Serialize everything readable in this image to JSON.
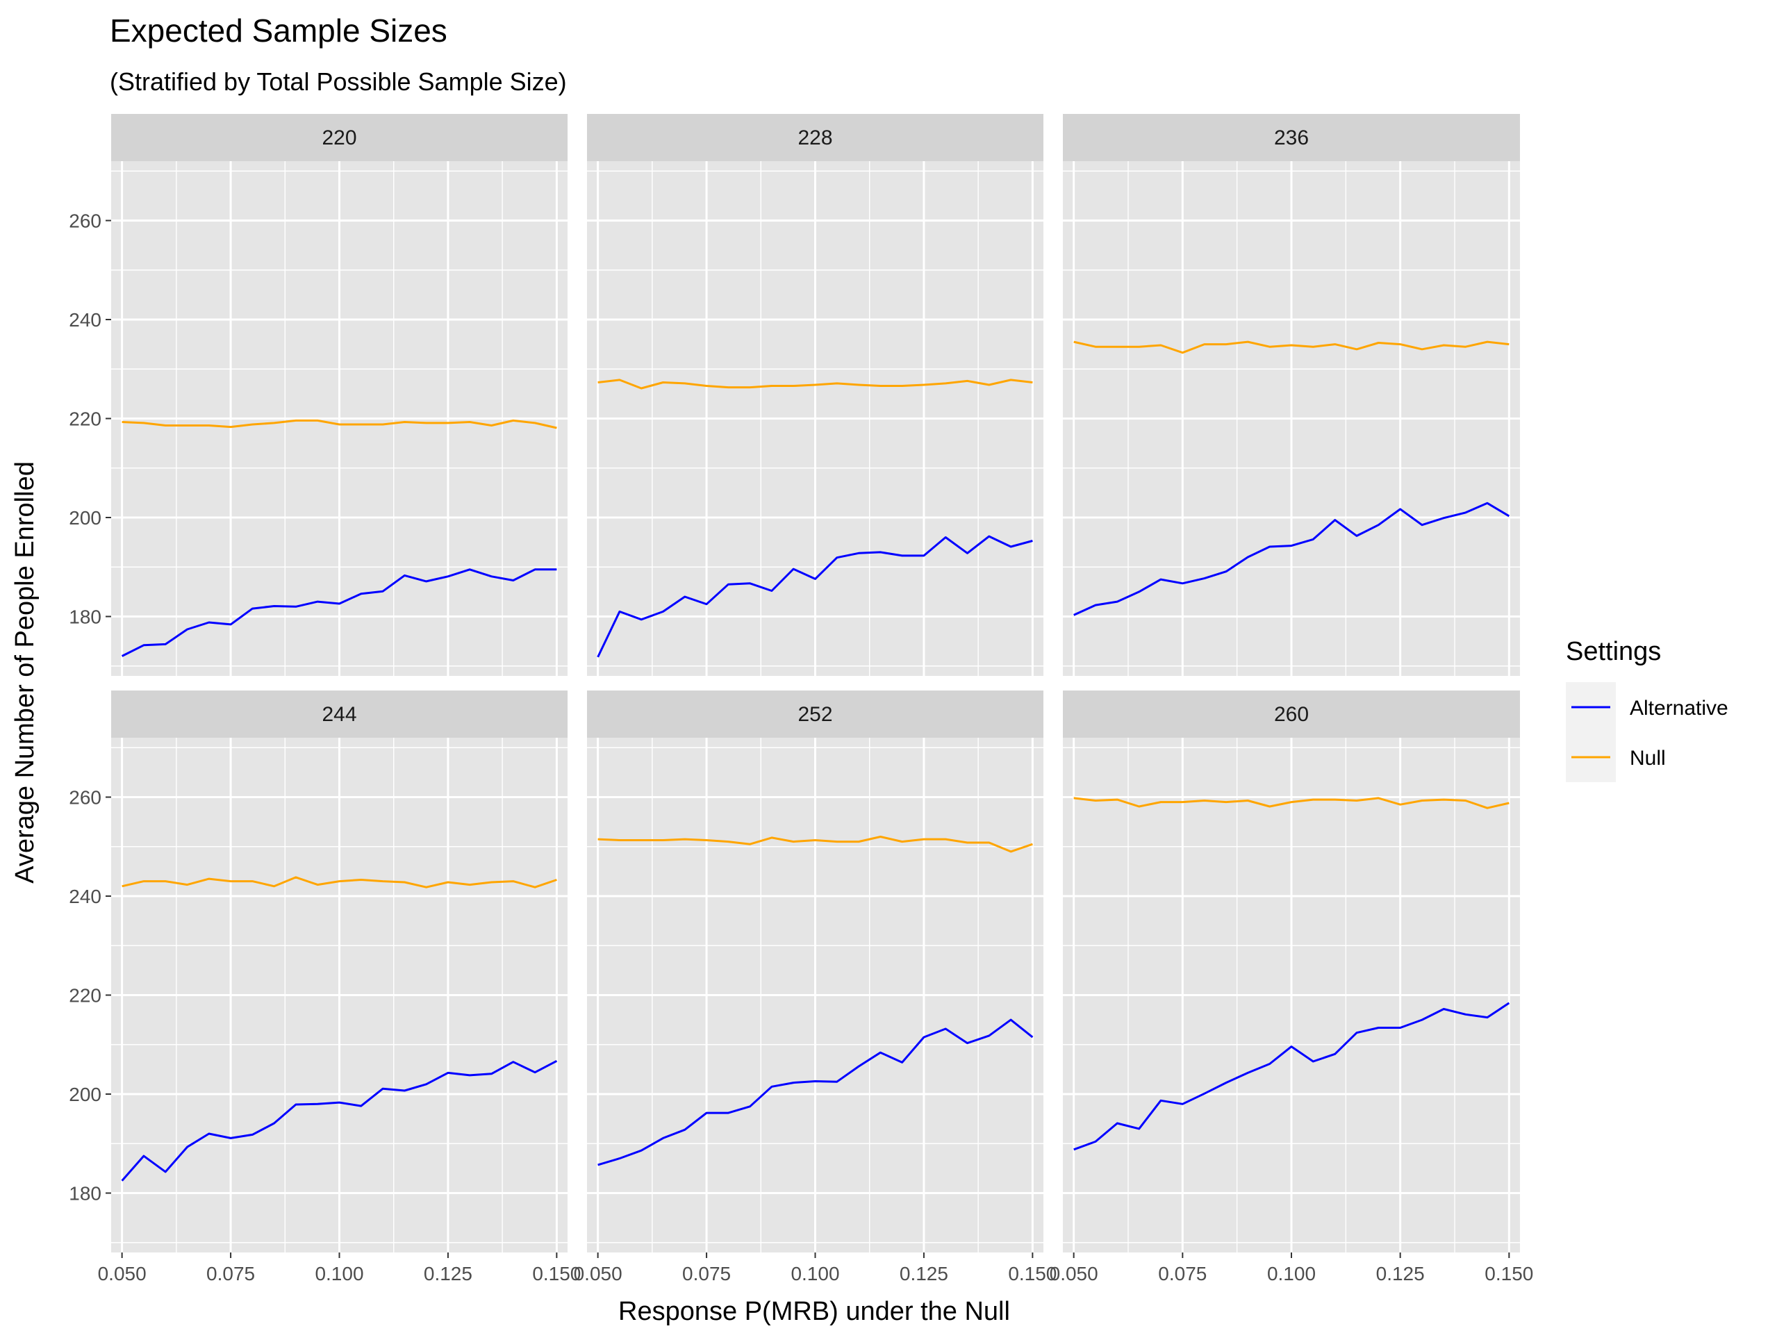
{
  "chart_data": {
    "type": "line",
    "title": "Expected Sample Sizes",
    "subtitle": "(Stratified by Total Possible Sample Size)",
    "xlabel": "Response P(MRB) under the Null",
    "ylabel": "Average Number of People Enrolled",
    "xlim": [
      0.0475,
      0.1525
    ],
    "ylim": [
      168,
      272
    ],
    "x_ticks": [
      "0.050",
      "0.075",
      "0.100",
      "0.125",
      "0.150"
    ],
    "x_tick_values": [
      0.05,
      0.075,
      0.1,
      0.125,
      0.15
    ],
    "y_ticks": [
      180,
      200,
      220,
      240,
      260
    ],
    "legend_title": "Settings",
    "legend_position": "right",
    "grid": true,
    "x": [
      0.05,
      0.055,
      0.06,
      0.065,
      0.07,
      0.075,
      0.08,
      0.085,
      0.09,
      0.095,
      0.1,
      0.105,
      0.11,
      0.115,
      0.12,
      0.125,
      0.13,
      0.135,
      0.14,
      0.145,
      0.15
    ],
    "legend": [
      {
        "name": "Alternative",
        "color": "#0000ff"
      },
      {
        "name": "Null",
        "color": "#ffa500"
      }
    ],
    "panels": [
      {
        "facet": "220",
        "series": [
          {
            "name": "Alternative",
            "color": "#0000ff",
            "values": [
              172,
              174.2,
              174.4,
              177.4,
              178.8,
              178.4,
              181.6,
              182.1,
              182,
              183,
              182.6,
              184.6,
              185.1,
              188.3,
              187.1,
              188.1,
              189.5,
              188.1,
              187.3,
              189.5,
              189.5
            ]
          },
          {
            "name": "Null",
            "color": "#ffa500",
            "values": [
              219.3,
              219.1,
              218.6,
              218.6,
              218.6,
              218.3,
              218.8,
              219.1,
              219.6,
              219.6,
              218.8,
              218.8,
              218.8,
              219.3,
              219.1,
              219.1,
              219.3,
              218.6,
              219.6,
              219.1,
              218.1
            ]
          }
        ]
      },
      {
        "facet": "228",
        "series": [
          {
            "name": "Alternative",
            "color": "#0000ff",
            "values": [
              171.8,
              181,
              179.4,
              181,
              184,
              182.5,
              186.5,
              186.7,
              185.2,
              189.6,
              187.6,
              191.9,
              192.8,
              193,
              192.3,
              192.3,
              196,
              192.8,
              196.2,
              194.1,
              195.3
            ]
          },
          {
            "name": "Null",
            "color": "#ffa500",
            "values": [
              227.3,
              227.8,
              226.1,
              227.3,
              227.1,
              226.6,
              226.3,
              226.3,
              226.6,
              226.6,
              226.8,
              227.1,
              226.8,
              226.6,
              226.6,
              226.8,
              227.1,
              227.6,
              226.8,
              227.8,
              227.3
            ]
          }
        ]
      },
      {
        "facet": "236",
        "series": [
          {
            "name": "Alternative",
            "color": "#0000ff",
            "values": [
              180.3,
              182.3,
              183,
              185,
              187.5,
              186.7,
              187.7,
              189.1,
              192,
              194.1,
              194.3,
              195.6,
              199.5,
              196.3,
              198.5,
              201.7,
              198.5,
              199.9,
              201,
              202.9,
              200.3
            ]
          },
          {
            "name": "Null",
            "color": "#ffa500",
            "values": [
              235.5,
              234.5,
              234.5,
              234.5,
              234.8,
              233.3,
              235,
              235,
              235.5,
              234.5,
              234.8,
              234.5,
              235,
              234,
              235.3,
              235,
              234,
              234.8,
              234.5,
              235.5,
              235
            ]
          }
        ]
      },
      {
        "facet": "244",
        "series": [
          {
            "name": "Alternative",
            "color": "#0000ff",
            "values": [
              182.5,
              187.5,
              184.3,
              189.3,
              192,
              191.1,
              191.8,
              194.1,
              197.9,
              198,
              198.3,
              197.6,
              201.1,
              200.7,
              202,
              204.3,
              203.8,
              204.1,
              206.5,
              204.4,
              206.7
            ]
          },
          {
            "name": "Null",
            "color": "#ffa500",
            "values": [
              242,
              243,
              243,
              242.3,
              243.5,
              243,
              243,
              242,
              243.8,
              242.3,
              243,
              243.3,
              243,
              242.8,
              241.8,
              242.8,
              242.3,
              242.8,
              243,
              241.8,
              243.3
            ]
          }
        ]
      },
      {
        "facet": "252",
        "series": [
          {
            "name": "Alternative",
            "color": "#0000ff",
            "values": [
              185.7,
              187,
              188.6,
              191.1,
              192.8,
              196.2,
              196.2,
              197.5,
              201.5,
              202.3,
              202.6,
              202.5,
              205.6,
              208.4,
              206.4,
              211.5,
              213.2,
              210.3,
              211.8,
              215,
              211.5
            ]
          },
          {
            "name": "Null",
            "color": "#ffa500",
            "values": [
              251.5,
              251.3,
              251.3,
              251.3,
              251.5,
              251.3,
              251,
              250.5,
              251.8,
              251,
              251.3,
              251,
              251,
              252,
              251,
              251.5,
              251.5,
              250.8,
              250.8,
              249,
              250.5
            ]
          }
        ]
      },
      {
        "facet": "260",
        "series": [
          {
            "name": "Alternative",
            "color": "#0000ff",
            "values": [
              188.8,
              190.4,
              194.1,
              193,
              198.7,
              198,
              200.1,
              202.3,
              204.3,
              206.1,
              209.6,
              206.6,
              208.1,
              212.4,
              213.4,
              213.4,
              215,
              217.2,
              216.1,
              215.5,
              218.4
            ]
          },
          {
            "name": "Null",
            "color": "#ffa500",
            "values": [
              259.8,
              259.3,
              259.5,
              258.1,
              259,
              259,
              259.3,
              259,
              259.3,
              258.1,
              259,
              259.5,
              259.5,
              259.3,
              259.8,
              258.5,
              259.3,
              259.5,
              259.3,
              257.8,
              258.8
            ]
          }
        ]
      }
    ]
  }
}
